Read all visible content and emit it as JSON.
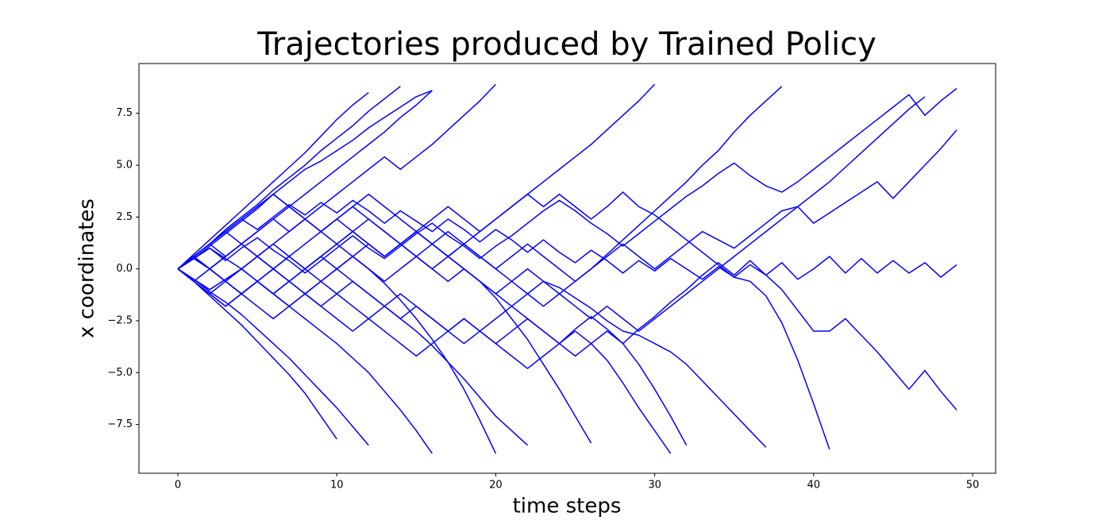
{
  "chart_data": {
    "type": "line",
    "title": "Trajectories produced by Trained Policy",
    "x_label": "time steps",
    "y_label": "x coordinates",
    "color": "#0000ff",
    "xlim": [
      -2.45,
      51.45
    ],
    "ylim": [
      -9.85,
      9.9
    ],
    "xticks": [
      0,
      10,
      20,
      30,
      40,
      50
    ],
    "yticks": [
      {
        "value": -7.5,
        "label": "−7.5"
      },
      {
        "value": -5,
        "label": "−5.0"
      },
      {
        "value": -2.5,
        "label": "−2.5"
      },
      {
        "value": 0,
        "label": "0.0"
      },
      {
        "value": 2.5,
        "label": "2.5"
      },
      {
        "value": 5,
        "label": "5.0"
      },
      {
        "value": 7.5,
        "label": "7.5"
      }
    ],
    "x": [
      0,
      1,
      2,
      3,
      4,
      5,
      6,
      7,
      8,
      9,
      10,
      11,
      12,
      13,
      14,
      15,
      16,
      17,
      18,
      19,
      20,
      21,
      22,
      23,
      24,
      25,
      26,
      27,
      28,
      29,
      30,
      31,
      32,
      33,
      34,
      35,
      36,
      37,
      38,
      39,
      40,
      41,
      42,
      43,
      44,
      45,
      46,
      47,
      48,
      49
    ],
    "series": [
      {
        "values": [
          0,
          0.6,
          1.2,
          1.9,
          2.5,
          3.1,
          3.8,
          4.4,
          5.0,
          5.7,
          6.3,
          6.9,
          7.6,
          8.2,
          8.8,
          null,
          null,
          null,
          null,
          null,
          null,
          null,
          null,
          null,
          null,
          null,
          null,
          null,
          null,
          null,
          null,
          null,
          null,
          null,
          null,
          null,
          null,
          null,
          null,
          null,
          null,
          null,
          null,
          null,
          null,
          null,
          null,
          null,
          null,
          null
        ]
      },
      {
        "values": [
          0,
          -0.6,
          -1.3,
          -2.0,
          -2.7,
          -3.5,
          -4.3,
          -5.1,
          -6.0,
          -7.1,
          -8.2,
          null,
          null,
          null,
          null,
          null,
          null,
          null,
          null,
          null,
          null,
          null,
          null,
          null,
          null,
          null,
          null,
          null,
          null,
          null,
          null,
          null,
          null,
          null,
          null,
          null,
          null,
          null,
          null,
          null,
          null,
          null,
          null,
          null,
          null,
          null,
          null,
          null,
          null,
          null
        ]
      },
      {
        "values": [
          0,
          0.5,
          1.1,
          1.7,
          2.3,
          2.9,
          3.6,
          4.2,
          4.8,
          5.2,
          5.7,
          6.2,
          6.8,
          7.3,
          7.8,
          8.3,
          8.6,
          null,
          null,
          null,
          null,
          null,
          null,
          null,
          null,
          null,
          null,
          null,
          null,
          null,
          null,
          null,
          null,
          null,
          null,
          null,
          null,
          null,
          null,
          null,
          null,
          null,
          null,
          null,
          null,
          null,
          null,
          null,
          null,
          null
        ]
      },
      {
        "values": [
          0,
          -0.5,
          -1.1,
          -1.6,
          -2.2,
          -2.9,
          -3.6,
          -4.3,
          -5.1,
          -5.9,
          -6.7,
          -7.6,
          -8.5,
          null,
          null,
          null,
          null,
          null,
          null,
          null,
          null,
          null,
          null,
          null,
          null,
          null,
          null,
          null,
          null,
          null,
          null,
          null,
          null,
          null,
          null,
          null,
          null,
          null,
          null,
          null,
          null,
          null,
          null,
          null,
          null,
          null,
          null,
          null,
          null,
          null
        ]
      },
      {
        "values": [
          0,
          0.6,
          1.2,
          1.8,
          2.4,
          1.9,
          2.5,
          3.1,
          2.6,
          3.2,
          2.7,
          3.3,
          2.8,
          2.2,
          2.8,
          2.3,
          1.8,
          2.4,
          1.9,
          1.3,
          1.9,
          1.4,
          0.8,
          1.4,
          0.8,
          0.3,
          0.9,
          0.4,
          -0.2,
          0.4,
          -0.1,
          0.5,
          0,
          -0.5,
          0.1,
          -0.4,
          0.2,
          -0.3,
          0.3,
          -0.5,
          0,
          0.6,
          -0.2,
          0.5,
          -0.2,
          0.4,
          -0.2,
          0.3,
          -0.4,
          0.2
        ]
      },
      {
        "values": [
          0,
          0.5,
          1.0,
          0.4,
          1.0,
          1.5,
          0.9,
          0.4,
          -0.2,
          0.4,
          1.0,
          1.6,
          1.0,
          0.5,
          1.1,
          1.7,
          2.2,
          1.6,
          1.1,
          0.5,
          1.1,
          1.6,
          2.2,
          2.8,
          3.3,
          2.8,
          2.2,
          1.7,
          1.1,
          1.7,
          2.3,
          2.9,
          3.5,
          4.0,
          4.6,
          5.1,
          4.5,
          4.0,
          3.7,
          4.2,
          4.8,
          5.4,
          6.0,
          6.6,
          7.2,
          7.8,
          8.4,
          7.4,
          8.1,
          8.7
        ]
      },
      {
        "values": [
          0,
          -0.5,
          -1.0,
          -0.5,
          0,
          -0.6,
          -1.2,
          -0.6,
          -1.2,
          -1.8,
          -1.2,
          -0.6,
          -1.2,
          -1.8,
          -2.4,
          -1.8,
          -2.4,
          -3.0,
          -2.4,
          -3.0,
          -3.6,
          -3.0,
          -2.4,
          -3.0,
          -3.6,
          -2.9,
          -2.3,
          -2.9,
          -3.6,
          -2.9,
          -2.3,
          -1.6,
          -1.0,
          -0.3,
          0.3,
          -0.3,
          0.4,
          -0.3,
          -1.0,
          -2.0,
          -3.0,
          -3.0,
          -2.4,
          -3.2,
          -4.0,
          -4.9,
          -5.8,
          -4.9,
          -5.9,
          -6.8
        ]
      },
      {
        "values": [
          0,
          0.5,
          0,
          -0.6,
          -1.2,
          -0.6,
          0,
          0.6,
          0,
          -0.6,
          0,
          0.6,
          1.2,
          0.6,
          1.2,
          1.8,
          1.2,
          0.6,
          1.2,
          0.6,
          0,
          0.6,
          1.2,
          0.6,
          0,
          -0.6,
          0,
          0.6,
          1.2,
          0.6,
          0,
          0.6,
          1.2,
          1.8,
          1.4,
          1.0,
          1.6,
          2.2,
          2.8,
          3.0,
          2.2,
          2.7,
          3.2,
          3.7,
          4.2,
          3.4,
          4.2,
          5.0,
          5.8,
          6.7
        ]
      },
      {
        "values": [
          0,
          -0.6,
          -1.2,
          -0.6,
          -1.2,
          -0.6,
          0,
          0.6,
          1.2,
          1.8,
          2.4,
          1.8,
          1.2,
          0.6,
          1.2,
          1.8,
          2.4,
          3.0,
          2.4,
          1.8,
          2.4,
          3.0,
          3.6,
          3.0,
          3.6,
          3.0,
          2.4,
          3.0,
          3.7,
          3.0,
          2.6,
          2.0,
          1.4,
          0.8,
          0.2,
          -0.4,
          -0.6,
          -1.3,
          -2.6,
          -4.4,
          -6.5,
          -8.7,
          null,
          null,
          null,
          null,
          null,
          null,
          null,
          null
        ]
      },
      {
        "values": [
          0,
          0.5,
          1.0,
          0.5,
          0,
          -0.6,
          -1.2,
          -1.8,
          -1.2,
          -1.8,
          -2.4,
          -3.0,
          -2.4,
          -1.8,
          -1.2,
          -1.8,
          -2.4,
          -3.0,
          -3.6,
          -3.0,
          -2.4,
          -1.8,
          -1.2,
          -0.6,
          -0.9,
          -1.4,
          -1.9,
          -2.5,
          -3.0,
          -3.2,
          -3.6,
          -4.0,
          -4.6,
          -5.4,
          -6.2,
          -7.0,
          -7.8,
          -8.6,
          null,
          null,
          null,
          null,
          null,
          null,
          null,
          null,
          null,
          null,
          null,
          null
        ]
      },
      {
        "values": [
          0,
          -0.5,
          -1.0,
          -0.5,
          0,
          0.6,
          1.2,
          0.6,
          0,
          0.6,
          1.2,
          1.8,
          1.2,
          0.6,
          1.2,
          0.6,
          0,
          -0.6,
          0,
          -0.6,
          -1.2,
          -0.6,
          -1.2,
          -1.8,
          -1.2,
          -0.6,
          0,
          0.7,
          1.4,
          2.1,
          2.8,
          3.5,
          4.2,
          5.0,
          5.7,
          6.6,
          7.4,
          8.1,
          8.8,
          null,
          null,
          null,
          null,
          null,
          null,
          null,
          null,
          null,
          null,
          null
        ]
      },
      {
        "values": [
          0,
          0.6,
          0,
          0.6,
          1.2,
          1.8,
          2.4,
          1.8,
          2.4,
          3.0,
          3.6,
          4.2,
          4.8,
          5.4,
          4.8,
          5.4,
          6.0,
          6.7,
          7.4,
          8.1,
          8.9,
          null,
          null,
          null,
          null,
          null,
          null,
          null,
          null,
          null,
          null,
          null,
          null,
          null,
          null,
          null,
          null,
          null,
          null,
          null,
          null,
          null,
          null,
          null,
          null,
          null,
          null,
          null,
          null,
          null
        ]
      },
      {
        "values": [
          0,
          -0.6,
          -1.2,
          -1.8,
          -1.2,
          -0.6,
          -1.2,
          -1.8,
          -2.4,
          -3.0,
          -3.6,
          -4.3,
          -5.0,
          -5.9,
          -6.8,
          -7.8,
          -8.9,
          null,
          null,
          null,
          null,
          null,
          null,
          null,
          null,
          null,
          null,
          null,
          null,
          null,
          null,
          null,
          null,
          null,
          null,
          null,
          null,
          null,
          null,
          null,
          null,
          null,
          null,
          null,
          null,
          null,
          null,
          null,
          null,
          null
        ]
      },
      {
        "values": [
          0,
          0.6,
          1.2,
          1.8,
          2.4,
          3.0,
          3.6,
          3.0,
          2.4,
          1.8,
          1.2,
          0.6,
          0,
          -0.7,
          -1.5,
          -2.4,
          -3.4,
          -4.5,
          -5.8,
          -7.3,
          -8.9,
          null,
          null,
          null,
          null,
          null,
          null,
          null,
          null,
          null,
          null,
          null,
          null,
          null,
          null,
          null,
          null,
          null,
          null,
          null,
          null,
          null,
          null,
          null,
          null,
          null,
          null,
          null,
          null,
          null
        ]
      },
      {
        "values": [
          0,
          0.6,
          0,
          -0.6,
          0,
          0.6,
          0,
          -0.6,
          -1.2,
          -0.6,
          0,
          0.6,
          0,
          -0.6,
          0,
          0.6,
          1.2,
          1.8,
          1.2,
          1.8,
          2.4,
          3.0,
          3.6,
          4.2,
          4.8,
          5.4,
          6.0,
          6.7,
          7.4,
          8.1,
          8.9,
          null,
          null,
          null,
          null,
          null,
          null,
          null,
          null,
          null,
          null,
          null,
          null,
          null,
          null,
          null,
          null,
          null,
          null,
          null
        ]
      },
      {
        "values": [
          0,
          -0.6,
          0,
          0.6,
          1.2,
          0.6,
          1.2,
          1.8,
          2.4,
          1.8,
          2.4,
          3.0,
          2.4,
          1.8,
          1.2,
          1.8,
          1.2,
          0.6,
          0,
          -0.6,
          -1.2,
          -1.8,
          -2.4,
          -3.0,
          -3.6,
          -3.0,
          -3.6,
          -4.4,
          -5.5,
          -6.7,
          -7.8,
          -8.9,
          null,
          null,
          null,
          null,
          null,
          null,
          null,
          null,
          null,
          null,
          null,
          null,
          null,
          null,
          null,
          null,
          null,
          null
        ]
      },
      {
        "values": [
          0,
          0.6,
          1.2,
          1.8,
          2.4,
          3.0,
          3.6,
          3.0,
          3.6,
          4.2,
          4.8,
          5.4,
          6.0,
          6.6,
          7.3,
          7.9,
          8.6,
          null,
          null,
          null,
          null,
          null,
          null,
          null,
          null,
          null,
          null,
          null,
          null,
          null,
          null,
          null,
          null,
          null,
          null,
          null,
          null,
          null,
          null,
          null,
          null,
          null,
          null,
          null,
          null,
          null,
          null,
          null,
          null,
          null
        ]
      },
      {
        "values": [
          0,
          0.5,
          0,
          -0.6,
          -1.2,
          -1.8,
          -2.4,
          -1.8,
          -1.2,
          -0.6,
          -1.2,
          -1.8,
          -2.4,
          -3.0,
          -3.6,
          -4.2,
          -3.6,
          -3.0,
          -2.4,
          -3.0,
          -3.6,
          -4.2,
          -4.8,
          -4.2,
          -3.6,
          -4.2,
          -3.6,
          -3.0,
          -3.6,
          -4.6,
          -5.8,
          -7.1,
          -8.5,
          null,
          null,
          null,
          null,
          null,
          null,
          null,
          null,
          null,
          null,
          null,
          null,
          null,
          null,
          null,
          null,
          null
        ]
      },
      {
        "values": [
          0,
          -0.6,
          -1.2,
          -1.8,
          -1.2,
          -0.6,
          -1.2,
          -0.6,
          0,
          0.6,
          1.2,
          1.8,
          2.4,
          1.8,
          1.2,
          0.6,
          0,
          0.6,
          1.2,
          0.6,
          0,
          -0.6,
          0,
          -0.6,
          -1.2,
          -1.8,
          -2.4,
          -1.8,
          -2.4,
          -3.0,
          -2.4,
          -1.8,
          -1.2,
          -0.6,
          0,
          0.6,
          1.2,
          1.8,
          2.4,
          3.0,
          3.6,
          4.2,
          4.9,
          5.6,
          6.3,
          7.0,
          7.7,
          8.3,
          null,
          null
        ]
      },
      {
        "values": [
          0,
          0.6,
          1.2,
          0.6,
          1.2,
          1.8,
          2.4,
          3.0,
          2.4,
          1.8,
          2.4,
          3.0,
          3.6,
          3.0,
          2.4,
          1.8,
          1.2,
          0.6,
          0,
          -0.6,
          -1.4,
          -2.4,
          -3.4,
          -4.6,
          -5.8,
          -7.1,
          -8.4,
          null,
          null,
          null,
          null,
          null,
          null,
          null,
          null,
          null,
          null,
          null,
          null,
          null,
          null,
          null,
          null,
          null,
          null,
          null,
          null,
          null,
          null,
          null
        ]
      },
      {
        "values": [
          0,
          0.7,
          1.4,
          2.1,
          2.8,
          3.5,
          4.2,
          4.9,
          5.6,
          6.4,
          7.2,
          7.9,
          8.5,
          null,
          null,
          null,
          null,
          null,
          null,
          null,
          null,
          null,
          null,
          null,
          null,
          null,
          null,
          null,
          null,
          null,
          null,
          null,
          null,
          null,
          null,
          null,
          null,
          null,
          null,
          null,
          null,
          null,
          null,
          null,
          null,
          null,
          null,
          null,
          null,
          null
        ]
      },
      {
        "values": [
          0,
          0.6,
          1.2,
          1.8,
          1.2,
          0.6,
          0,
          -0.6,
          0,
          0.6,
          0,
          -0.6,
          -1.2,
          -1.8,
          -2.4,
          -3.0,
          -3.7,
          -4.5,
          -5.3,
          -6.2,
          -7.1,
          -7.8,
          -8.5,
          null,
          null,
          null,
          null,
          null,
          null,
          null,
          null,
          null,
          null,
          null,
          null,
          null,
          null,
          null,
          null,
          null,
          null,
          null,
          null,
          null,
          null,
          null,
          null,
          null,
          null,
          null
        ]
      }
    ]
  }
}
